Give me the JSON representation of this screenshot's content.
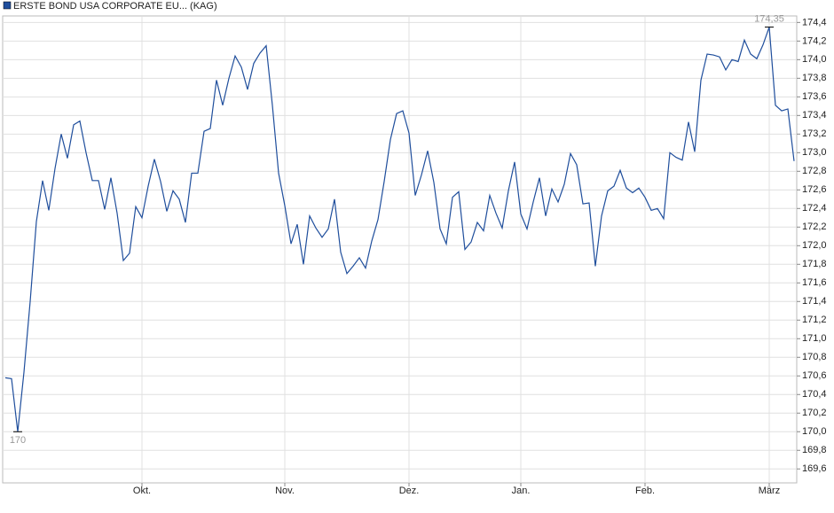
{
  "chart_data": {
    "type": "line",
    "series": [
      {
        "name": "ERSTE BOND USA CORPORATE EU... (KAG)",
        "color": "#1f4e9c",
        "values": [
          170.58,
          170.57,
          170.0,
          170.64,
          171.4,
          172.26,
          172.7,
          172.38,
          172.83,
          173.2,
          172.94,
          173.3,
          173.34,
          173.0,
          172.7,
          172.7,
          172.39,
          172.73,
          172.35,
          171.84,
          171.92,
          172.42,
          172.3,
          172.64,
          172.93,
          172.69,
          172.37,
          172.59,
          172.5,
          172.25,
          172.78,
          172.78,
          173.23,
          173.26,
          173.78,
          173.51,
          173.8,
          174.04,
          173.92,
          173.68,
          173.96,
          174.07,
          174.15,
          173.51,
          172.78,
          172.43,
          172.02,
          172.23,
          171.8,
          172.32,
          172.19,
          172.09,
          172.18,
          172.5,
          171.93,
          171.7,
          171.78,
          171.87,
          171.76,
          172.05,
          172.28,
          172.69,
          173.14,
          173.42,
          173.45,
          173.21,
          172.54,
          172.76,
          173.02,
          172.68,
          172.18,
          172.02,
          172.52,
          172.58,
          171.96,
          172.04,
          172.25,
          172.16,
          172.54,
          172.35,
          172.19,
          172.59,
          172.9,
          172.34,
          172.18,
          172.47,
          172.73,
          172.32,
          172.61,
          172.47,
          172.66,
          172.99,
          172.87,
          172.45,
          172.46,
          171.78,
          172.32,
          172.59,
          172.64,
          172.81,
          172.62,
          172.57,
          172.62,
          172.52,
          172.38,
          172.4,
          172.29,
          173.0,
          172.95,
          172.92,
          173.33,
          173.01,
          173.78,
          174.06,
          174.05,
          174.03,
          173.89,
          174.0,
          173.98,
          174.21,
          174.06,
          174.01,
          174.16,
          174.35,
          173.51,
          173.45,
          173.47,
          172.91
        ]
      }
    ],
    "categories": [
      null,
      null,
      null,
      null,
      null,
      null,
      null,
      null,
      null,
      null,
      null,
      null,
      null,
      null,
      null,
      null,
      null,
      null,
      null,
      null,
      null,
      null,
      "Okt.",
      null,
      null,
      null,
      null,
      null,
      null,
      null,
      null,
      null,
      null,
      null,
      null,
      null,
      null,
      null,
      null,
      null,
      null,
      null,
      null,
      null,
      null,
      "Nov.",
      null,
      null,
      null,
      null,
      null,
      null,
      null,
      null,
      null,
      null,
      null,
      null,
      null,
      null,
      null,
      null,
      null,
      null,
      null,
      "Dez.",
      null,
      null,
      null,
      null,
      null,
      null,
      null,
      null,
      null,
      null,
      null,
      null,
      null,
      null,
      null,
      null,
      null,
      "Jan.",
      null,
      null,
      null,
      null,
      null,
      null,
      null,
      null,
      null,
      null,
      null,
      null,
      null,
      null,
      null,
      null,
      null,
      null,
      null,
      "Feb.",
      null,
      null,
      null,
      null,
      null,
      null,
      null,
      null,
      null,
      null,
      null,
      null,
      null,
      null,
      null,
      null,
      null,
      null,
      null,
      "März",
      null,
      null,
      null,
      null
    ],
    "ylim": [
      169.45,
      174.47
    ],
    "yticks": [
      {
        "value": 169.6,
        "label": "169,6"
      },
      {
        "value": 169.8,
        "label": "169,8"
      },
      {
        "value": 170.0,
        "label": "170,0"
      },
      {
        "value": 170.2,
        "label": "170,2"
      },
      {
        "value": 170.4,
        "label": "170,4"
      },
      {
        "value": 170.6,
        "label": "170,6"
      },
      {
        "value": 170.8,
        "label": "170,8"
      },
      {
        "value": 171.0,
        "label": "171,0"
      },
      {
        "value": 171.2,
        "label": "171,2"
      },
      {
        "value": 171.4,
        "label": "171,4"
      },
      {
        "value": 171.6,
        "label": "171,6"
      },
      {
        "value": 171.8,
        "label": "171,8"
      },
      {
        "value": 172.0,
        "label": "172,0"
      },
      {
        "value": 172.2,
        "label": "172,2"
      },
      {
        "value": 172.4,
        "label": "172,4"
      },
      {
        "value": 172.6,
        "label": "172,6"
      },
      {
        "value": 172.8,
        "label": "172,8"
      },
      {
        "value": 173.0,
        "label": "173,0"
      },
      {
        "value": 173.2,
        "label": "173,2"
      },
      {
        "value": 173.4,
        "label": "173,4"
      },
      {
        "value": 173.6,
        "label": "173,6"
      },
      {
        "value": 173.8,
        "label": "173,8"
      },
      {
        "value": 174.0,
        "label": "174,0"
      },
      {
        "value": 174.2,
        "label": "174,2"
      },
      {
        "value": 174.4,
        "label": "174,4"
      }
    ],
    "grid": true,
    "max_label": {
      "value": 174.35,
      "label": "174,35"
    },
    "min_label": 170
  }
}
